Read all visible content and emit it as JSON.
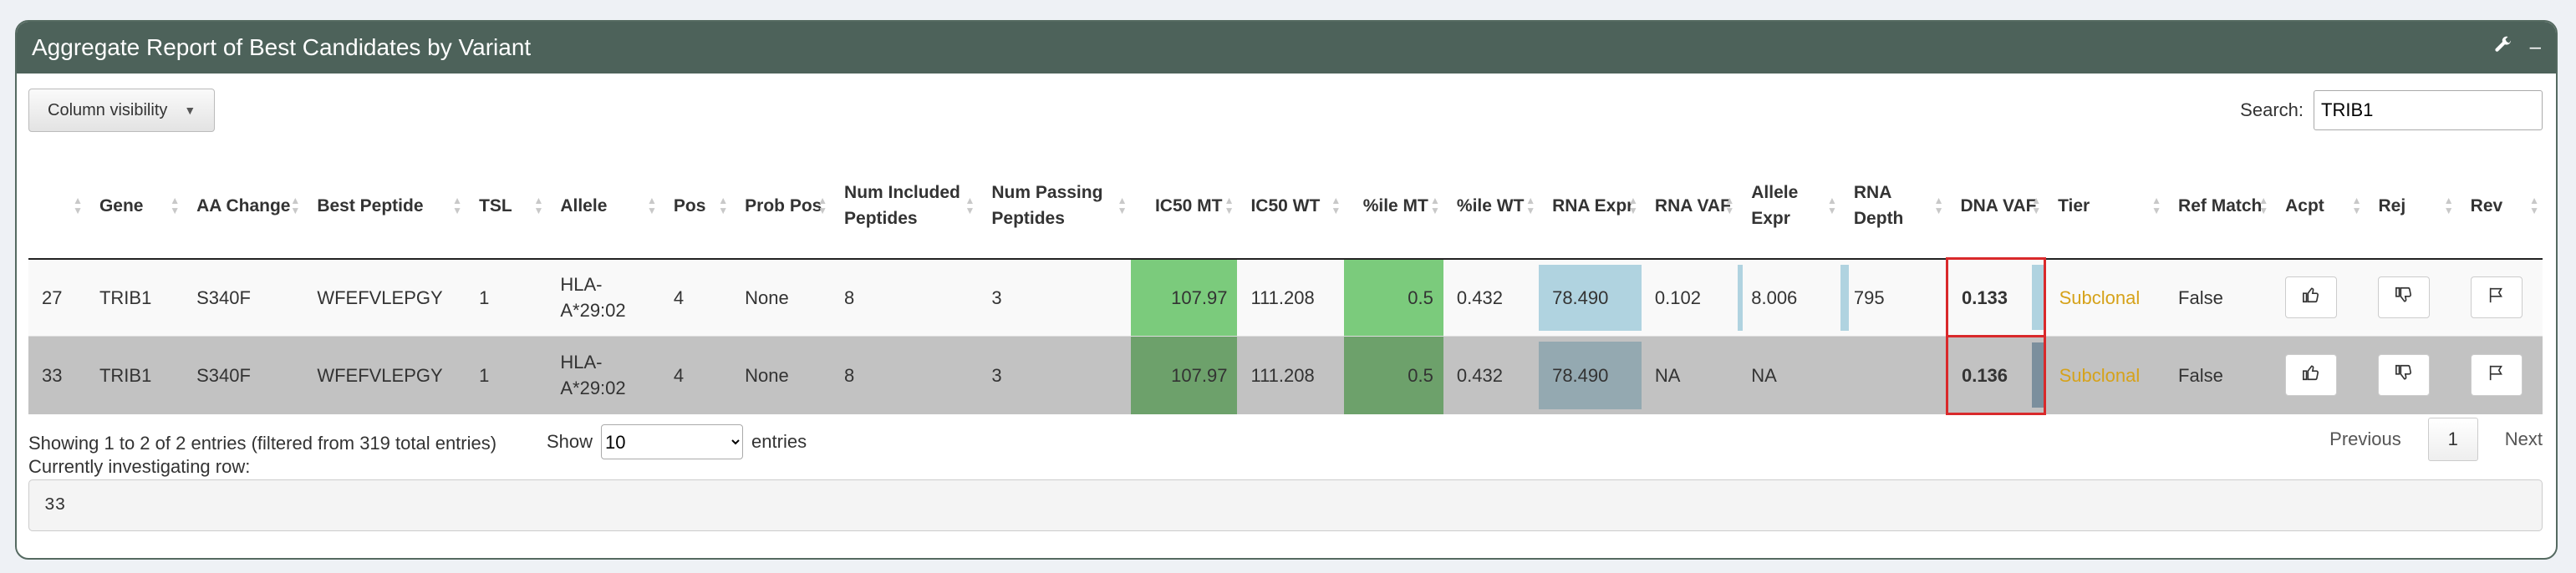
{
  "panel": {
    "title": "Aggregate Report of Best Candidates by Variant",
    "icons": [
      "wrench-icon",
      "minimize-icon"
    ]
  },
  "toolbar": {
    "column_visibility_label": "Column visibility",
    "search_label": "Search:",
    "search_value": "TRIB1"
  },
  "table": {
    "headers": [
      {
        "key": "id",
        "label": ""
      },
      {
        "key": "gene",
        "label": "Gene"
      },
      {
        "key": "aa_change",
        "label": "AA Change"
      },
      {
        "key": "best_peptide",
        "label": "Best Peptide"
      },
      {
        "key": "tsl",
        "label": "TSL"
      },
      {
        "key": "allele",
        "label": "Allele"
      },
      {
        "key": "pos",
        "label": "Pos"
      },
      {
        "key": "prob_pos",
        "label": "Prob Pos"
      },
      {
        "key": "num_included",
        "label": "Num Included Peptides"
      },
      {
        "key": "num_passing",
        "label": "Num Passing Peptides"
      },
      {
        "key": "ic50_mt",
        "label": "IC50 MT"
      },
      {
        "key": "ic50_wt",
        "label": "IC50 WT"
      },
      {
        "key": "pctile_mt",
        "label": "%ile MT"
      },
      {
        "key": "pctile_wt",
        "label": "%ile WT"
      },
      {
        "key": "rna_expr",
        "label": "RNA Expr"
      },
      {
        "key": "rna_vaf",
        "label": "RNA VAF"
      },
      {
        "key": "allele_expr",
        "label": "Allele Expr"
      },
      {
        "key": "rna_depth",
        "label": "RNA Depth"
      },
      {
        "key": "dna_vaf",
        "label": "DNA VAF"
      },
      {
        "key": "tier",
        "label": "Tier"
      },
      {
        "key": "ref_match",
        "label": "Ref Match"
      },
      {
        "key": "acpt",
        "label": "Acpt"
      },
      {
        "key": "rej",
        "label": "Rej"
      },
      {
        "key": "rev",
        "label": "Rev"
      }
    ],
    "rows": [
      {
        "id": "27",
        "gene": "TRIB1",
        "aa_change": "S340F",
        "best_peptide": "WFEFVLEPGY",
        "tsl": "1",
        "allele": "HLA-A*29:02",
        "pos": "4",
        "prob_pos": "None",
        "num_included": "8",
        "num_passing": "3",
        "ic50_mt": "107.97",
        "ic50_wt": "111.208",
        "pctile_mt": "0.5",
        "pctile_wt": "0.432",
        "rna_expr": "78.490",
        "rna_vaf": "0.102",
        "allele_expr": "8.006",
        "rna_depth": "795",
        "dna_vaf": "0.133",
        "tier": "Subclonal",
        "ref_match": "False"
      },
      {
        "id": "33",
        "gene": "TRIB1",
        "aa_change": "S340F",
        "best_peptide": "WFEFVLEPGY",
        "tsl": "1",
        "allele": "HLA-A*29:02",
        "pos": "4",
        "prob_pos": "None",
        "num_included": "8",
        "num_passing": "3",
        "ic50_mt": "107.97",
        "ic50_wt": "111.208",
        "pctile_mt": "0.5",
        "pctile_wt": "0.432",
        "rna_expr": "78.490",
        "rna_vaf": "NA",
        "allele_expr": "NA",
        "rna_depth": "",
        "dna_vaf": "0.136",
        "tier": "Subclonal",
        "ref_match": "False"
      }
    ],
    "action_icons": [
      "thumbs-up-icon",
      "thumbs-down-icon",
      "flag-icon"
    ]
  },
  "footer": {
    "info": "Showing 1 to 2 of 2 entries (filtered from 319 total entries)",
    "show_label": "Show",
    "page_size": "10",
    "entries_label": "entries",
    "previous_label": "Previous",
    "current_page": "1",
    "next_label": "Next"
  },
  "investigation": {
    "label": "Currently investigating row:",
    "value": "33"
  },
  "colors": {
    "header_bg": "#4d625a",
    "ic50_highlight": "#7bcb7c",
    "tier_color": "#d6a21a",
    "dna_vaf_border": "#d9292b"
  }
}
